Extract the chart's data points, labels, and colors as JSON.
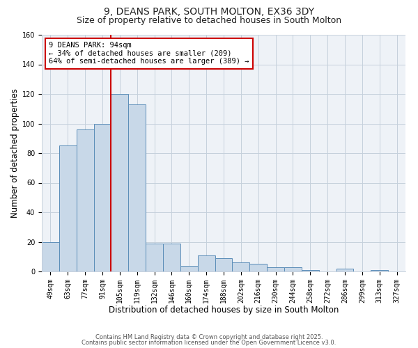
{
  "title": "9, DEANS PARK, SOUTH MOLTON, EX36 3DY",
  "subtitle": "Size of property relative to detached houses in South Molton",
  "xlabel": "Distribution of detached houses by size in South Molton",
  "ylabel": "Number of detached properties",
  "bin_labels": [
    "49sqm",
    "63sqm",
    "77sqm",
    "91sqm",
    "105sqm",
    "119sqm",
    "132sqm",
    "146sqm",
    "160sqm",
    "174sqm",
    "188sqm",
    "202sqm",
    "216sqm",
    "230sqm",
    "244sqm",
    "258sqm",
    "272sqm",
    "286sqm",
    "299sqm",
    "313sqm",
    "327sqm"
  ],
  "bar_heights": [
    20,
    85,
    96,
    100,
    120,
    113,
    19,
    19,
    4,
    11,
    9,
    6,
    5,
    3,
    3,
    1,
    0,
    2,
    0,
    1,
    0
  ],
  "bar_color": "#c8d8e8",
  "bar_edge_color": "#5b8db8",
  "vline_color": "#cc0000",
  "annotation_title": "9 DEANS PARK: 94sqm",
  "annotation_line1": "← 34% of detached houses are smaller (209)",
  "annotation_line2": "64% of semi-detached houses are larger (389) →",
  "annotation_box_color": "#cc0000",
  "ylim": [
    0,
    160
  ],
  "yticks": [
    0,
    20,
    40,
    60,
    80,
    100,
    120,
    140,
    160
  ],
  "footer1": "Contains HM Land Registry data © Crown copyright and database right 2025.",
  "footer2": "Contains public sector information licensed under the Open Government Licence v3.0.",
  "background_color": "#eef2f7",
  "grid_color": "#c5d0dc",
  "title_fontsize": 10,
  "subtitle_fontsize": 9,
  "axis_label_fontsize": 8.5,
  "tick_fontsize": 7,
  "footer_fontsize": 6,
  "ann_fontsize": 7.5
}
